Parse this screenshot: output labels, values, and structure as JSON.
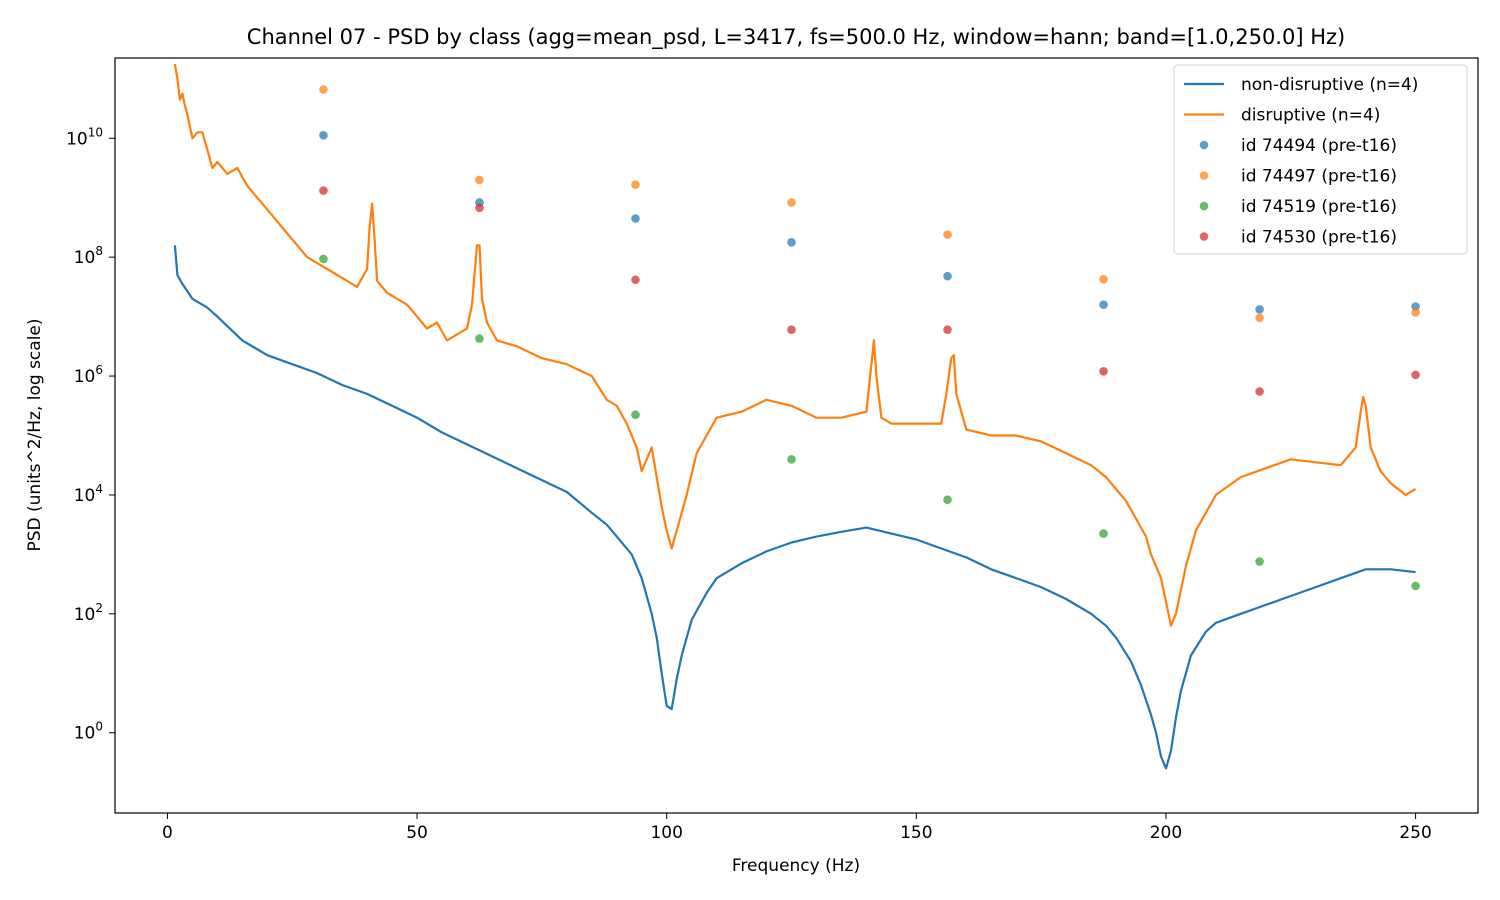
{
  "chart_data": {
    "type": "line",
    "title": "Channel 07 - PSD by class (agg=mean_psd, L=3417, fs=500.0 Hz, window=hann; band=[1.0,250.0] Hz)",
    "xlabel": "Frequency (Hz)",
    "ylabel": "PSD (units^2/Hz, log scale)",
    "xlim": [
      -10.5,
      262.5
    ],
    "ylim_log10": [
      -1.35,
      11.35
    ],
    "yscale": "log",
    "grid": false,
    "legend_position": "top-right",
    "x_ticks": [
      {
        "value": 0,
        "label": "0"
      },
      {
        "value": 50,
        "label": "50"
      },
      {
        "value": 100,
        "label": "100"
      },
      {
        "value": 150,
        "label": "150"
      },
      {
        "value": 200,
        "label": "200"
      },
      {
        "value": 250,
        "label": "250"
      }
    ],
    "y_ticks": [
      {
        "exp": 0,
        "base": "10",
        "sup": "0"
      },
      {
        "exp": 2,
        "base": "10",
        "sup": "2"
      },
      {
        "exp": 4,
        "base": "10",
        "sup": "4"
      },
      {
        "exp": 6,
        "base": "10",
        "sup": "6"
      },
      {
        "exp": 8,
        "base": "10",
        "sup": "8"
      },
      {
        "exp": 10,
        "base": "10",
        "sup": "10"
      }
    ],
    "series": [
      {
        "name": "non-disruptive (n=4)",
        "kind": "line",
        "color": "#1f77b4",
        "x": [
          1.5,
          2,
          3,
          5,
          8,
          10,
          15,
          20,
          25,
          30,
          35,
          40,
          45,
          50,
          55,
          60,
          65,
          70,
          75,
          80,
          85,
          88,
          90,
          93,
          95,
          97,
          98,
          99,
          100,
          101,
          102,
          103,
          105,
          108,
          110,
          115,
          120,
          125,
          130,
          135,
          140,
          145,
          150,
          155,
          160,
          165,
          170,
          175,
          180,
          185,
          188,
          190,
          193,
          195,
          197,
          198,
          199,
          200,
          201,
          202,
          203,
          205,
          208,
          210,
          215,
          220,
          225,
          230,
          235,
          240,
          245,
          250
        ],
        "log10y": [
          8.2,
          7.7,
          7.55,
          7.3,
          7.15,
          7.0,
          6.6,
          6.35,
          6.2,
          6.05,
          5.85,
          5.7,
          5.5,
          5.3,
          5.05,
          4.85,
          4.65,
          4.45,
          4.25,
          4.05,
          3.7,
          3.5,
          3.3,
          3.0,
          2.6,
          2.0,
          1.6,
          1.0,
          0.45,
          0.4,
          0.9,
          1.3,
          1.9,
          2.35,
          2.6,
          2.85,
          3.05,
          3.2,
          3.3,
          3.38,
          3.45,
          3.35,
          3.25,
          3.1,
          2.95,
          2.75,
          2.6,
          2.45,
          2.25,
          2.0,
          1.8,
          1.6,
          1.2,
          0.8,
          0.3,
          0.0,
          -0.4,
          -0.6,
          -0.3,
          0.25,
          0.7,
          1.3,
          1.7,
          1.85,
          2.0,
          2.15,
          2.3,
          2.45,
          2.6,
          2.75,
          2.75,
          2.7
        ]
      },
      {
        "name": "disruptive (n=4)",
        "kind": "line",
        "color": "#ff7f0e",
        "x": [
          1.5,
          2,
          2.5,
          3,
          3.5,
          4,
          5,
          6,
          7,
          8,
          9,
          10,
          12,
          14,
          16,
          18,
          20,
          22,
          24,
          26,
          28,
          30,
          32,
          34,
          36,
          38,
          40,
          40.5,
          41,
          41.5,
          42,
          44,
          46,
          48,
          50,
          52,
          54,
          56,
          58,
          60,
          61,
          62,
          62.5,
          63,
          64,
          66,
          70,
          75,
          80,
          85,
          88,
          90,
          92,
          94,
          95,
          96,
          97,
          98,
          99,
          100,
          101,
          102,
          104,
          106,
          110,
          115,
          120,
          125,
          130,
          135,
          140,
          141,
          141.5,
          142,
          143,
          145,
          150,
          155,
          156,
          157,
          157.5,
          158,
          160,
          165,
          170,
          175,
          180,
          185,
          188,
          190,
          192,
          194,
          196,
          197,
          198,
          199,
          200,
          201,
          202,
          204,
          206,
          210,
          215,
          220,
          225,
          230,
          235,
          238,
          239,
          239.5,
          240,
          241,
          243,
          245,
          248,
          250
        ],
        "log10y": [
          11.25,
          11.0,
          10.65,
          10.75,
          10.55,
          10.4,
          10.0,
          10.1,
          10.1,
          9.8,
          9.5,
          9.6,
          9.4,
          9.5,
          9.2,
          9.0,
          8.8,
          8.6,
          8.4,
          8.2,
          8.0,
          7.9,
          7.8,
          7.7,
          7.6,
          7.5,
          7.8,
          8.5,
          8.9,
          8.3,
          7.6,
          7.4,
          7.3,
          7.2,
          7.0,
          6.8,
          6.9,
          6.6,
          6.7,
          6.8,
          7.2,
          8.2,
          8.2,
          7.3,
          6.9,
          6.6,
          6.5,
          6.3,
          6.2,
          6.0,
          5.6,
          5.5,
          5.2,
          4.8,
          4.4,
          4.6,
          4.8,
          4.3,
          3.8,
          3.4,
          3.1,
          3.4,
          4.0,
          4.7,
          5.3,
          5.4,
          5.6,
          5.5,
          5.3,
          5.3,
          5.4,
          6.2,
          6.6,
          6.0,
          5.3,
          5.2,
          5.2,
          5.2,
          5.7,
          6.3,
          6.35,
          5.7,
          5.1,
          5.0,
          5.0,
          4.9,
          4.7,
          4.5,
          4.3,
          4.1,
          3.9,
          3.6,
          3.3,
          3.0,
          2.8,
          2.6,
          2.2,
          1.8,
          2.0,
          2.8,
          3.4,
          4.0,
          4.3,
          4.45,
          4.6,
          4.55,
          4.5,
          4.8,
          5.4,
          5.65,
          5.5,
          4.8,
          4.4,
          4.2,
          4.0,
          4.1
        ]
      }
    ],
    "scatter_series": [
      {
        "name": "id 74494 (pre-t16)",
        "color": "#1f77b4",
        "x": [
          31.25,
          62.5,
          93.75,
          125,
          156.25,
          187.5,
          218.75,
          250
        ],
        "log10y": [
          10.05,
          8.92,
          8.65,
          8.25,
          7.68,
          7.2,
          7.12,
          7.17
        ]
      },
      {
        "name": "id 74497 (pre-t16)",
        "color": "#ff7f0e",
        "x": [
          31.25,
          62.5,
          93.75,
          125,
          156.25,
          187.5,
          218.75,
          250
        ],
        "log10y": [
          10.82,
          9.3,
          9.22,
          8.92,
          8.38,
          7.63,
          6.98,
          7.07
        ]
      },
      {
        "name": "id 74519 (pre-t16)",
        "color": "#2ca02c",
        "x": [
          31.25,
          62.5,
          93.75,
          125,
          156.25,
          187.5,
          218.75,
          250
        ],
        "log10y": [
          7.97,
          6.63,
          5.35,
          4.6,
          3.92,
          3.35,
          2.88,
          2.47
        ]
      },
      {
        "name": "id 74530 (pre-t16)",
        "color": "#d62728",
        "x": [
          31.25,
          62.5,
          93.75,
          125,
          156.25,
          187.5,
          218.75,
          250
        ],
        "log10y": [
          9.12,
          8.83,
          7.62,
          6.78,
          6.78,
          6.08,
          5.74,
          6.02
        ]
      }
    ]
  }
}
